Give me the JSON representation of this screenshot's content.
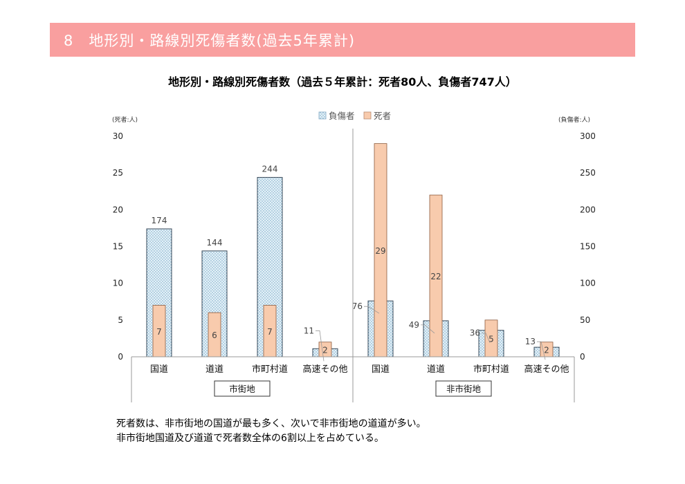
{
  "section_title": "8　地形別・路線別死傷者数(過去5年累計)",
  "chart_data": {
    "type": "bar",
    "title": "地形別・路線別死傷者数（過去５年累計：死者80人、負傷者747人）",
    "legend_position": "top",
    "grid": false,
    "left_axis_label": "(死者:人)",
    "right_axis_label": "(負傷者:人)",
    "ylim_left": [
      0,
      30
    ],
    "ylim_right": [
      0,
      300
    ],
    "yticks_left": [
      "0",
      "5",
      "10",
      "15",
      "20",
      "25",
      "30"
    ],
    "yticks_right": [
      "0",
      "50",
      "100",
      "150",
      "200",
      "250",
      "300"
    ],
    "categories": [
      "国道",
      "道道",
      "市町村道",
      "高速その他",
      "国道",
      "道道",
      "市町村道",
      "高速その他"
    ],
    "groups": [
      {
        "label": "市街地",
        "categories": [
          "国道",
          "道道",
          "市町村道",
          "高速その他"
        ]
      },
      {
        "label": "非市街地",
        "categories": [
          "国道",
          "道道",
          "市町村道",
          "高速その他"
        ]
      }
    ],
    "series": [
      {
        "name": "負傷者",
        "axis": "right",
        "color": "#d7e9f3",
        "values": [
          174,
          144,
          244,
          11,
          76,
          49,
          36,
          13
        ]
      },
      {
        "name": "死者",
        "axis": "left",
        "color": "#f8cbad",
        "values": [
          7,
          6,
          7,
          2,
          29,
          22,
          5,
          2
        ]
      }
    ]
  },
  "summary": {
    "line1": "死者数は、非市街地の国道が最も多く、次いで非市街地の道道が多い。",
    "line2": "非市街地国道及び道道で死者数全体の6割以上を占めている。"
  }
}
